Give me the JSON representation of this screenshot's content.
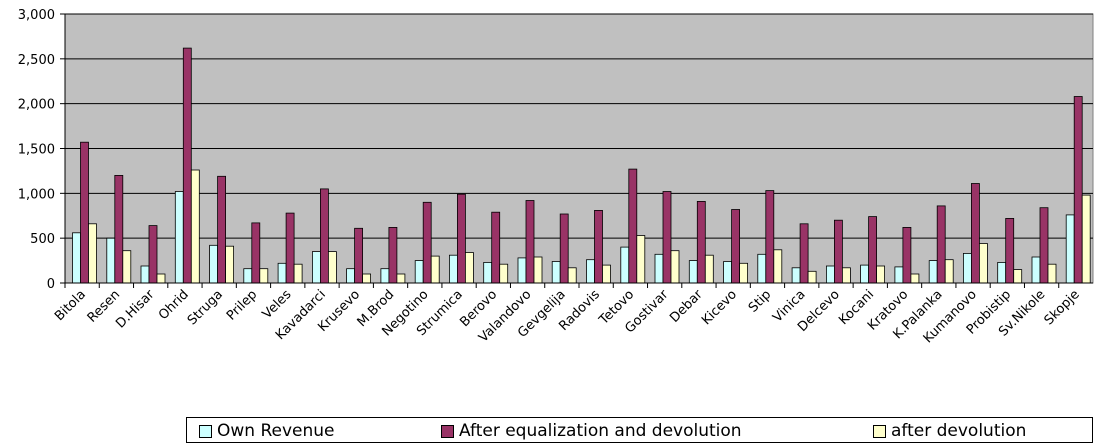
{
  "chart_data": {
    "type": "bar",
    "categories": [
      "Bitola",
      "Resen",
      "D.Hisar",
      "Ohrid",
      "Struga",
      "Prilep",
      "Veles",
      "Kavadarci",
      "Krusevo",
      "M.Brod",
      "Negotino",
      "Strumica",
      "Berovo",
      "Valandovo",
      "Gevgelija",
      "Radovis",
      "Tetovo",
      "Gostivar",
      "Debar",
      "Kicevo",
      "Stip",
      "Vinica",
      "Delcevo",
      "Kocani",
      "Kratovo",
      "K.Palanka",
      "Kumanovo",
      "Probistip",
      "Sv.Nikole",
      "Skopje"
    ],
    "series": [
      {
        "name": "Own Revenue",
        "color": "#ccffff",
        "values": [
          560,
          500,
          190,
          1020,
          420,
          160,
          220,
          350,
          160,
          160,
          250,
          310,
          230,
          280,
          240,
          260,
          400,
          320,
          250,
          240,
          320,
          170,
          190,
          200,
          180,
          250,
          330,
          230,
          290,
          760
        ]
      },
      {
        "name": "After equalization and devolution",
        "color": "#993366",
        "values": [
          1570,
          1200,
          640,
          2620,
          1190,
          670,
          780,
          1050,
          610,
          620,
          900,
          990,
          790,
          920,
          770,
          810,
          1270,
          1020,
          910,
          820,
          1030,
          660,
          700,
          740,
          620,
          860,
          1110,
          720,
          840,
          2080
        ]
      },
      {
        "name": "after devolution",
        "color": "#ffffcc",
        "values": [
          660,
          360,
          100,
          1260,
          410,
          160,
          210,
          350,
          100,
          100,
          300,
          340,
          210,
          290,
          170,
          200,
          530,
          360,
          310,
          220,
          370,
          130,
          170,
          190,
          100,
          260,
          440,
          150,
          210,
          980
        ]
      }
    ],
    "yticks": [
      "0",
      "500",
      "1,000",
      "1,500",
      "2,000",
      "2,500",
      "3,000"
    ],
    "ylim": [
      0,
      3000
    ],
    "title": "",
    "xlabel": "",
    "ylabel": "",
    "grid": true,
    "plot_background": "#c0c0c0",
    "legend_position": "bottom"
  }
}
